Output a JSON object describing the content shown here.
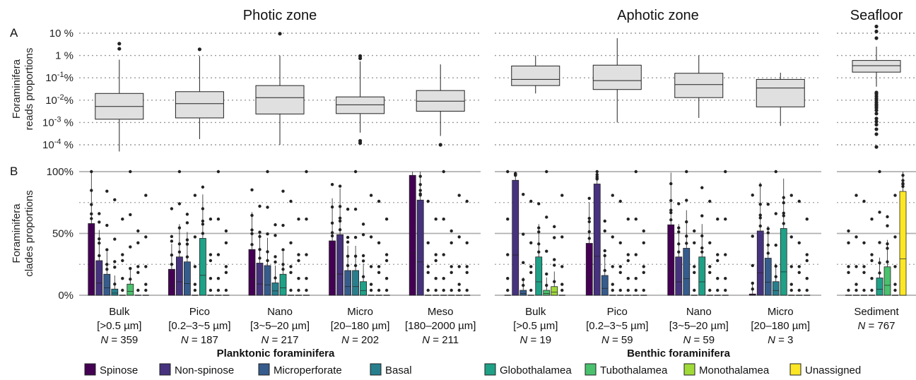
{
  "chart_data": [
    {
      "panel": "A",
      "type": "box",
      "ylabel": [
        "Foraminifera",
        "reads proportions"
      ],
      "yscale": "log",
      "ylim": [
        0.0001,
        10
      ],
      "yticks": [
        {
          "v": 10,
          "base": "10",
          "exp": "",
          "suffix": " %"
        },
        {
          "v": 1,
          "base": "1",
          "exp": "",
          "suffix": " %"
        },
        {
          "v": 0.1,
          "base": "10",
          "exp": "-1",
          "suffix": "%"
        },
        {
          "v": 0.01,
          "base": "10",
          "exp": "-2",
          "suffix": "%"
        },
        {
          "v": 0.001,
          "base": "10",
          "exp": "-3",
          "suffix": " %"
        },
        {
          "v": 0.0001,
          "base": "10",
          "exp": "-4",
          "suffix": " %"
        }
      ],
      "zones": [
        {
          "title": "Photic zone",
          "boxes": [
            {
              "label": "Bulk",
              "q1": 0.0014,
              "median": 0.0052,
              "q3": 0.02,
              "lo": 5e-05,
              "hi": 0.65,
              "outliers": [
                2.0,
                3.4
              ]
            },
            {
              "label": "Pico",
              "q1": 0.0016,
              "median": 0.007,
              "q3": 0.024,
              "lo": 0.00018,
              "hi": 0.95,
              "outliers": [
                1.9
              ]
            },
            {
              "label": "Nano",
              "q1": 0.0024,
              "median": 0.013,
              "q3": 0.045,
              "lo": 0.0001,
              "hi": 1.0,
              "outliers": [
                9.5
              ]
            },
            {
              "label": "Micro",
              "q1": 0.0025,
              "median": 0.0062,
              "q3": 0.014,
              "lo": 0.00035,
              "hi": 0.55,
              "outliers": [
                0.00012,
                0.00015,
                0.95,
                0.75
              ]
            },
            {
              "label": "Meso",
              "q1": 0.0032,
              "median": 0.009,
              "q3": 0.027,
              "lo": 0.00025,
              "hi": 0.4,
              "outliers": [
                0.0001
              ]
            }
          ]
        },
        {
          "title": "Aphotic zone",
          "boxes": [
            {
              "label": "Bulk",
              "q1": 0.045,
              "median": 0.085,
              "q3": 0.34,
              "lo": 0.02,
              "hi": 1.0,
              "outliers": []
            },
            {
              "label": "Pico",
              "q1": 0.03,
              "median": 0.075,
              "q3": 0.37,
              "lo": 0.001,
              "hi": 6.0,
              "outliers": []
            },
            {
              "label": "Nano",
              "q1": 0.013,
              "median": 0.05,
              "q3": 0.16,
              "lo": 0.0016,
              "hi": 1.0,
              "outliers": []
            },
            {
              "label": "Micro",
              "q1": 0.005,
              "median": 0.035,
              "q3": 0.085,
              "lo": 0.0007,
              "hi": 0.17,
              "outliers": []
            }
          ]
        },
        {
          "title": "Seafloor",
          "boxes": [
            {
              "label": "Sediment",
              "q1": 0.18,
              "median": 0.35,
              "q3": 0.6,
              "lo": 0.04,
              "hi": 2.5,
              "outliers": [
                20,
                12,
                6,
                0.022,
                0.019,
                0.015,
                0.012,
                0.01,
                0.008,
                0.0065,
                0.0055,
                0.0045,
                0.0035,
                0.0025,
                0.0015,
                0.0011,
                0.0008,
                0.0005,
                0.0003,
                8e-05
              ]
            }
          ]
        }
      ]
    },
    {
      "panel": "B",
      "type": "box",
      "ylabel": [
        "Foraminifera",
        "clades proportions"
      ],
      "ylim": [
        0,
        100
      ],
      "yticks": [
        "0%",
        "50%",
        "100%"
      ],
      "clades": [
        "Spinose",
        "Non-spinose",
        "Microperforate",
        "Basal",
        "Globothalamea",
        "Tubothalamea",
        "Monothalamea",
        "Unassigned"
      ],
      "groups": [
        {
          "zone": "Photic zone",
          "label": "Bulk",
          "range": "[>0.5 µm]",
          "n": "359",
          "q3": [
            58,
            28,
            17,
            5,
            0,
            9,
            0,
            0
          ]
        },
        {
          "zone": "Photic zone",
          "label": "Pico",
          "range": "[0.2–3~5 µm]",
          "n": "187",
          "q3": [
            21,
            31,
            27,
            0,
            46,
            0,
            0,
            0
          ]
        },
        {
          "zone": "Photic zone",
          "label": "Nano",
          "range": "[3~5–20 µm]",
          "n": "217",
          "q3": [
            37,
            26,
            24,
            10,
            17,
            0,
            0,
            0
          ]
        },
        {
          "zone": "Photic zone",
          "label": "Micro",
          "range": "[20–180 µm]",
          "n": "202",
          "q3": [
            44,
            49,
            20,
            20,
            11,
            0,
            0,
            0
          ]
        },
        {
          "zone": "Photic zone",
          "label": "Meso",
          "range": "[180–2000 µm]",
          "n": "211",
          "q3": [
            97,
            77,
            0,
            0,
            0,
            0,
            0,
            0
          ]
        },
        {
          "zone": "Aphotic zone",
          "label": "Bulk",
          "range": "[>0.5 µm]",
          "n": "19",
          "q3": [
            0,
            93,
            4,
            0,
            31,
            4,
            7,
            0
          ]
        },
        {
          "zone": "Aphotic zone",
          "label": "Pico",
          "range": "[0.2–3~5 µm]",
          "n": "59",
          "q3": [
            42,
            90,
            16,
            0,
            0,
            0,
            0,
            0
          ]
        },
        {
          "zone": "Aphotic zone",
          "label": "Nano",
          "range": "[3~5–20 µm]",
          "n": "59",
          "q3": [
            57,
            31,
            38,
            0,
            31,
            0,
            0,
            0
          ]
        },
        {
          "zone": "Aphotic zone",
          "label": "Micro",
          "range": "[20–180 µm]",
          "n": "3",
          "q3": [
            1,
            52,
            30,
            11,
            54,
            0,
            0,
            0
          ]
        },
        {
          "zone": "Seafloor",
          "label": "Sediment",
          "range": "",
          "n": "767",
          "q3": [
            0,
            0,
            0,
            0,
            14,
            23,
            0,
            84
          ]
        }
      ]
    }
  ],
  "legend": {
    "planktonic_title": "Planktonic foraminifera",
    "benthic_title": "Benthic foraminifera",
    "n_prefix": "N",
    "items": [
      {
        "label": "Spinose",
        "color": "#440154"
      },
      {
        "label": "Non-spinose",
        "color": "#46327e"
      },
      {
        "label": "Microperforate",
        "color": "#365c8d"
      },
      {
        "label": "Basal",
        "color": "#277f8e"
      },
      {
        "label": "Globothalamea",
        "color": "#1fa187"
      },
      {
        "label": "Tubothalamea",
        "color": "#4ac16d"
      },
      {
        "label": "Monothalamea",
        "color": "#a0da39"
      },
      {
        "label": "Unassigned",
        "color": "#fde725"
      }
    ]
  }
}
